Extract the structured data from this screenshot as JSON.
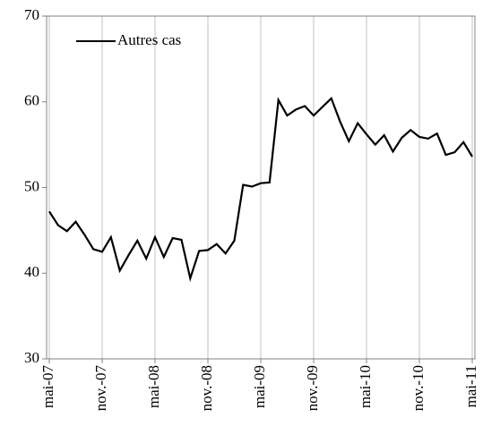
{
  "chart_data": {
    "type": "line",
    "title": "",
    "xlabel": "",
    "ylabel": "",
    "ylim": [
      30,
      70
    ],
    "y_ticks": [
      30,
      40,
      50,
      60,
      70
    ],
    "grid": "vertical",
    "legend_position": "top-left",
    "colors": {
      "line": "#000000",
      "grid": "#c0c0c0",
      "axis": "#808080",
      "background": "#ffffff"
    },
    "x_ticks": [
      {
        "label": "mai-07",
        "index": 0
      },
      {
        "label": "nov.-07",
        "index": 6
      },
      {
        "label": "mai-08",
        "index": 12
      },
      {
        "label": "nov.-08",
        "index": 18
      },
      {
        "label": "mai-09",
        "index": 24
      },
      {
        "label": "nov.-09",
        "index": 30
      },
      {
        "label": "mai-10",
        "index": 36
      },
      {
        "label": "nov.-10",
        "index": 42
      },
      {
        "label": "mai-11",
        "index": 48
      }
    ],
    "series": [
      {
        "name": "Autres cas",
        "color": "#000000",
        "values": [
          47.2,
          45.6,
          44.9,
          46.0,
          44.5,
          42.8,
          42.5,
          44.2,
          40.3,
          42.1,
          43.8,
          41.7,
          44.2,
          41.9,
          44.1,
          43.9,
          39.4,
          42.6,
          42.7,
          43.4,
          42.3,
          43.8,
          50.3,
          50.1,
          50.5,
          50.6,
          60.2,
          58.4,
          59.1,
          59.5,
          58.4,
          59.4,
          60.4,
          57.7,
          55.4,
          57.5,
          56.2,
          55.0,
          56.1,
          54.2,
          55.8,
          56.7,
          55.9,
          55.7,
          56.3,
          53.8,
          54.1,
          55.3,
          53.6
        ]
      }
    ]
  }
}
